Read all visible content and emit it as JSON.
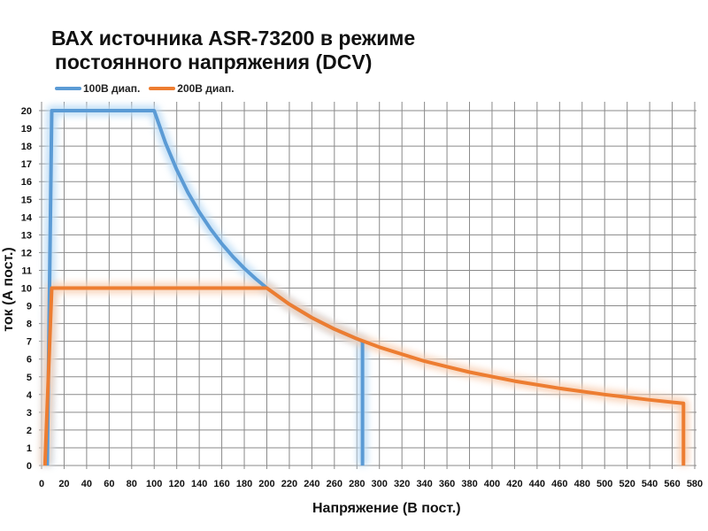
{
  "chart_data": {
    "type": "line",
    "title_line1": "ВАХ источника ASR-73200 в режиме",
    "title_line2": "постоянного напряжения (DCV)",
    "xlabel": "Напряжение (В пост.)",
    "ylabel": "ток  (А пост.)",
    "xlim": [
      0,
      580
    ],
    "ylim": [
      0,
      20
    ],
    "xticks": [
      0,
      20,
      40,
      60,
      80,
      100,
      120,
      140,
      160,
      180,
      200,
      220,
      240,
      260,
      280,
      300,
      320,
      340,
      360,
      380,
      400,
      420,
      440,
      460,
      480,
      500,
      520,
      540,
      560,
      580
    ],
    "yticks": [
      0,
      1,
      2,
      3,
      4,
      5,
      6,
      7,
      8,
      9,
      10,
      11,
      12,
      13,
      14,
      15,
      16,
      17,
      18,
      19,
      20
    ],
    "grid": true,
    "legend_position": "top-left",
    "series": [
      {
        "name": "100В диап.",
        "color": "#5b9bd5",
        "glow": "#bcdcf5",
        "points": [
          [
            5,
            0
          ],
          [
            9,
            20
          ],
          [
            100,
            20
          ],
          [
            110,
            18.18
          ],
          [
            120,
            16.67
          ],
          [
            130,
            15.38
          ],
          [
            140,
            14.29
          ],
          [
            150,
            13.33
          ],
          [
            160,
            12.5
          ],
          [
            170,
            11.76
          ],
          [
            180,
            11.11
          ],
          [
            190,
            10.53
          ],
          [
            200,
            10
          ],
          [
            220,
            9.09
          ],
          [
            240,
            8.33
          ],
          [
            260,
            7.69
          ],
          [
            285,
            7.0
          ],
          [
            285,
            0
          ]
        ]
      },
      {
        "name": "200В диап.",
        "color": "#ed7d31",
        "glow": "#f8cfb2",
        "points": [
          [
            3,
            0
          ],
          [
            9,
            10
          ],
          [
            200,
            10
          ],
          [
            220,
            9.09
          ],
          [
            240,
            8.33
          ],
          [
            260,
            7.69
          ],
          [
            280,
            7.14
          ],
          [
            300,
            6.67
          ],
          [
            340,
            5.88
          ],
          [
            380,
            5.26
          ],
          [
            420,
            4.76
          ],
          [
            460,
            4.35
          ],
          [
            500,
            4.0
          ],
          [
            540,
            3.7
          ],
          [
            570,
            3.5
          ],
          [
            570,
            0
          ]
        ]
      }
    ]
  }
}
